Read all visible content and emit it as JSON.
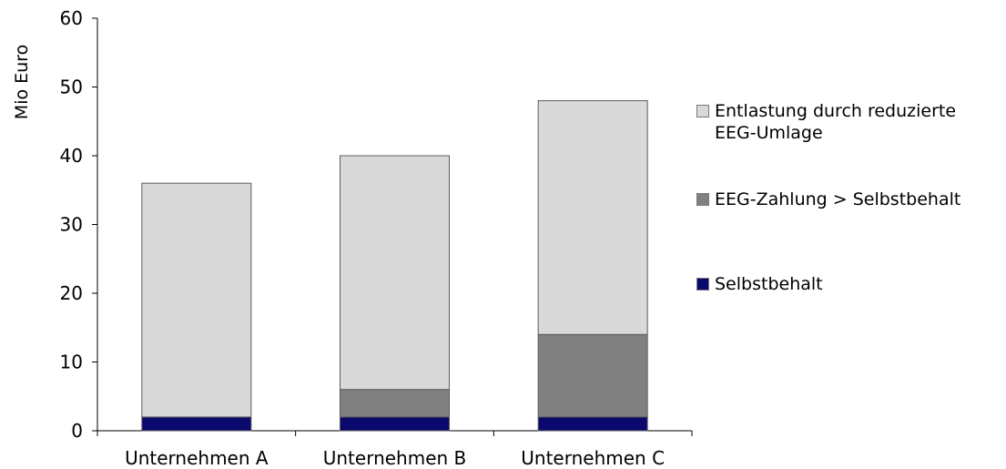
{
  "chart_data": {
    "type": "bar",
    "stacked": true,
    "title": "",
    "xlabel": "",
    "ylabel": "Mio Euro",
    "ylim": [
      0,
      60
    ],
    "yticks": [
      0,
      10,
      20,
      30,
      40,
      50,
      60
    ],
    "grid": false,
    "legend_position": "right",
    "categories": [
      "Unternehmen A",
      "Unternehmen B",
      "Unternehmen C"
    ],
    "series": [
      {
        "name": "Selbstbehalt",
        "color": "#0a0a6e",
        "values": [
          2,
          2,
          2
        ]
      },
      {
        "name": "EEG-Zahlung > Selbstbehalt",
        "color": "#808080",
        "values": [
          0,
          4,
          12
        ]
      },
      {
        "name": "Entlastung durch reduzierte EEG-Umlage",
        "color": "#d9d9d9",
        "values": [
          34,
          34,
          34
        ]
      }
    ]
  },
  "legend": {
    "items": [
      {
        "label": "Entlastung durch reduzierte\nEEG-Umlage",
        "color": "#d9d9d9"
      },
      {
        "label": "EEG-Zahlung > Selbstbehalt",
        "color": "#808080"
      },
      {
        "label": "Selbstbehalt",
        "color": "#0a0a6e"
      }
    ]
  }
}
